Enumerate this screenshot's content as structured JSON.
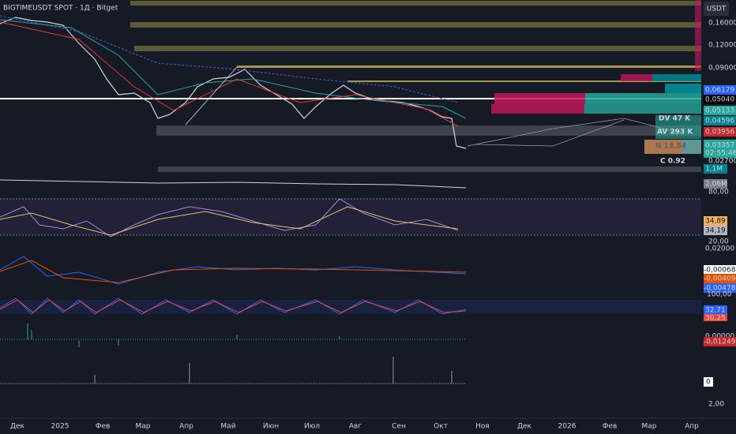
{
  "header": {
    "title": "BIGTIMEUSDT SPOT · 1Д · Bitget",
    "currency": "USDT"
  },
  "price_axis": {
    "labels": [
      "0,16000",
      "0,12000",
      "0,09000",
      "0,06179",
      "0,05040",
      "0,05133",
      "0,04596",
      "0,03956",
      "0,03357",
      "02:55:46",
      "0,02700",
      "1,1M"
    ]
  },
  "volume_axis": {
    "labels": [
      "2,06M"
    ]
  },
  "rsi_axis": {
    "labels": [
      "80,00",
      "34,89",
      "34,19",
      "20,00"
    ]
  },
  "macd_axis": {
    "labels": [
      "0,02000",
      "-0,00068",
      "-0,00409",
      "-0,00478"
    ]
  },
  "stoch_axis": {
    "labels": [
      "100,00",
      "32,71",
      "30,25"
    ]
  },
  "osc_axis": {
    "labels": [
      "0,00000",
      "-0,01249"
    ]
  },
  "vol_axis": {
    "labels": [
      "0",
      "2,00"
    ]
  },
  "profile": {
    "labels": [
      "DV 47 K",
      "AV 293 K",
      "N 13.54",
      "C  0.92"
    ]
  },
  "time_axis": {
    "labels": [
      "Дек",
      "2025",
      "Фев",
      "Мар",
      "Апр",
      "Май",
      "Июн",
      "Июл",
      "Авг",
      "Сен",
      "Окт",
      "Ноя",
      "Дек",
      "2026",
      "Фев",
      "Мар",
      "Апр"
    ]
  }
}
